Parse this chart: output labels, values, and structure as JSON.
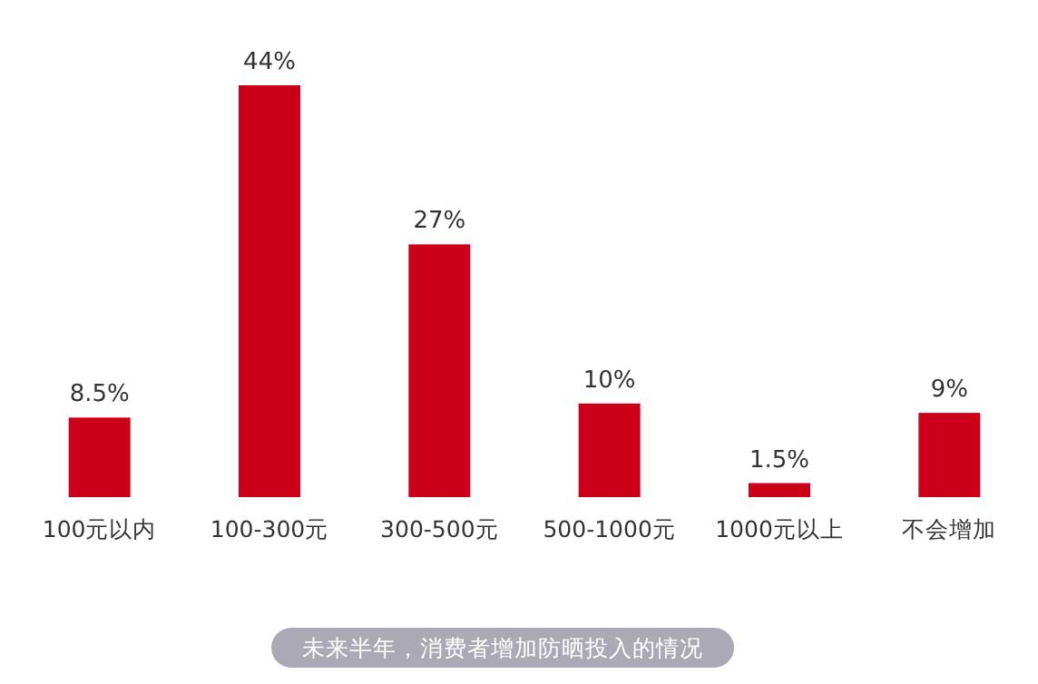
{
  "chart_data": {
    "type": "bar",
    "categories": [
      "100元以内",
      "100-300元",
      "300-500元",
      "500-1000元",
      "1000元以上",
      "不会增加"
    ],
    "values": [
      8.5,
      44,
      27,
      10,
      1.5,
      9
    ],
    "value_labels": [
      "8.5%",
      "44%",
      "27%",
      "10%",
      "1.5%",
      "9%"
    ],
    "color": "#cc0019",
    "annotations": [
      "未来半年，消费者增加防晒投入的情况"
    ]
  }
}
